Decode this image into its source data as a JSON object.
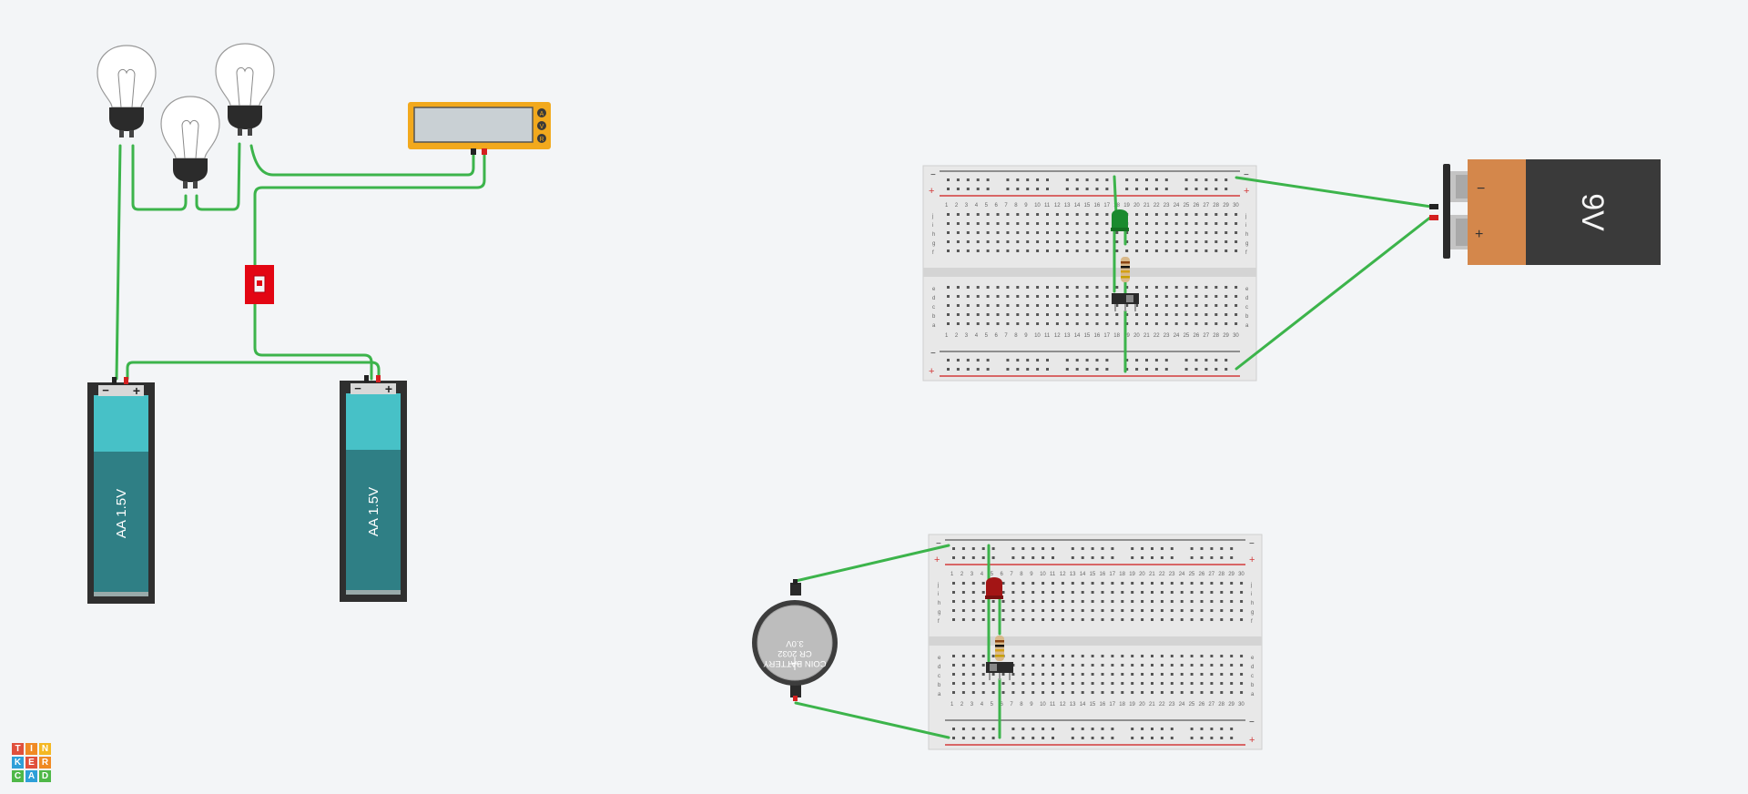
{
  "app": {
    "name": "Tinkercad",
    "logo_letters": [
      "T",
      "I",
      "N",
      "K",
      "E",
      "R",
      "C",
      "A",
      "D"
    ],
    "logo_colors": [
      "#e0503c",
      "#f08a24",
      "#f4b823",
      "#2e9fd8",
      "#e0503c",
      "#f08a24",
      "#4fb848",
      "#2e9fd8",
      "#4fb848"
    ]
  },
  "colors": {
    "canvas": "#f3f5f7",
    "wire": "#3cb44b",
    "battery_holder": "#2f2f2f",
    "aa_cell_top": "#47c1c7",
    "aa_cell_body": "#2f7f85",
    "nine_volt_body": "#3a3a3a",
    "nine_volt_top": "#d4874b",
    "multimeter": "#f2a91d",
    "switch_red": "#e30613",
    "breadboard": "#e8e8e8",
    "rail_red": "#d23b3b",
    "led_green": "#1a8a2e",
    "led_red": "#a31515",
    "coin_cell": "#bdbdbd"
  },
  "aa_batteries": [
    {
      "label": "AA 1.5V",
      "minus": "−",
      "plus": "+"
    },
    {
      "label": "AA 1.5V",
      "minus": "−",
      "plus": "+"
    }
  ],
  "nine_volt_battery": {
    "label": "9V",
    "minus": "−",
    "plus": "+"
  },
  "coin_battery": {
    "line1": "COIN BATTERY",
    "line2": "CR 2032",
    "line3": "3.0V"
  },
  "multimeter": {
    "modes": [
      "A",
      "V",
      "R"
    ]
  },
  "breadboard": {
    "rail_minus": "−",
    "rail_plus": "+",
    "row_letters_top": [
      "j",
      "i",
      "h",
      "g",
      "f"
    ],
    "row_letters_bottom": [
      "e",
      "d",
      "c",
      "b",
      "a"
    ],
    "column_count": 30
  }
}
